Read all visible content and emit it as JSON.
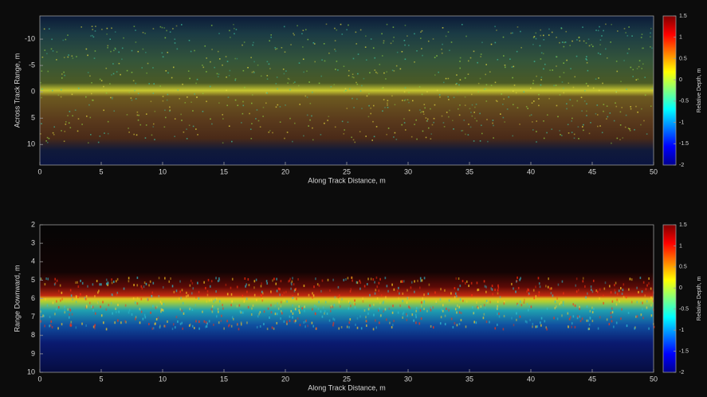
{
  "chart_data": [
    {
      "type": "image",
      "xlabel": "Along Track Distance, m",
      "ylabel": "Across Track Range, m",
      "xlim": [
        0,
        50
      ],
      "xticks": [
        0,
        5,
        10,
        15,
        20,
        25,
        30,
        35,
        40,
        45,
        50
      ],
      "ylim": [
        -14.4,
        13.9
      ],
      "yticks": [
        -10,
        -5,
        0,
        5,
        10
      ],
      "y_reversed": true,
      "colorbar": {
        "label": "Relative Depth, m",
        "lim": [
          -2,
          1.5
        ],
        "ticks": [
          1.5,
          1,
          0.5,
          0,
          -0.5,
          -1,
          -1.5,
          -2
        ],
        "colormap": "jet"
      }
    },
    {
      "type": "image",
      "xlabel": "Along Track Distance, m",
      "ylabel": "Range Downward, m",
      "xlim": [
        0,
        50
      ],
      "xticks": [
        0,
        5,
        10,
        15,
        20,
        25,
        30,
        35,
        40,
        45,
        50
      ],
      "ylim": [
        2,
        10
      ],
      "yticks": [
        2,
        3,
        4,
        5,
        6,
        7,
        8,
        9,
        10
      ],
      "y_reversed": true,
      "colorbar": {
        "label": "Relative Depth, m",
        "lim": [
          -2,
          1.5
        ],
        "ticks": [
          1.5,
          1,
          0.5,
          0,
          -0.5,
          -1,
          -1.5,
          -2
        ],
        "colormap": "jet"
      }
    }
  ]
}
